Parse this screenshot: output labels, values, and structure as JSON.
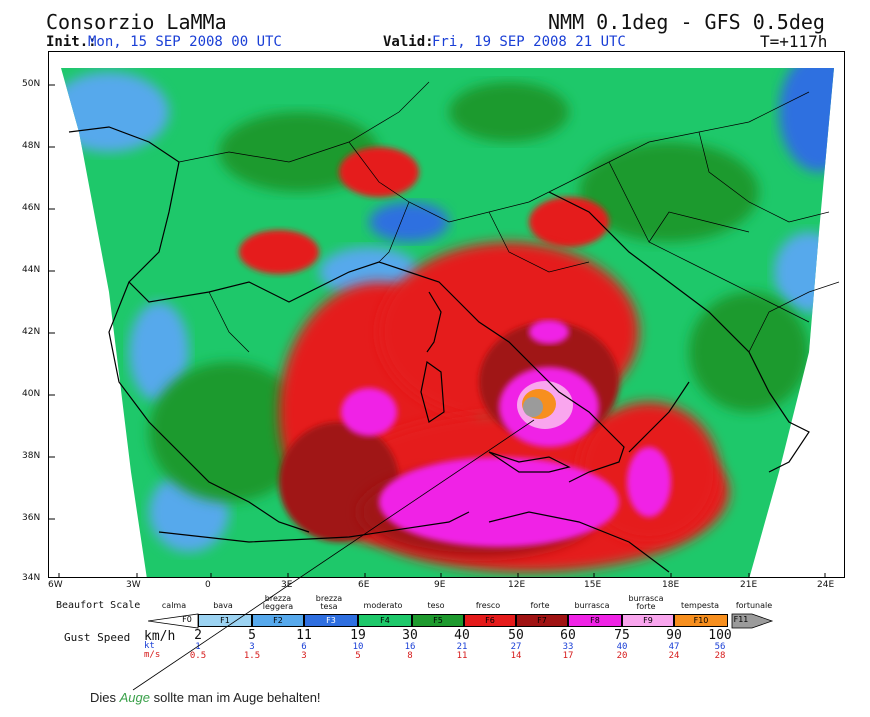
{
  "header": {
    "org": "Consorzio LaMMa",
    "model": "NMM 0.1deg - GFS 0.5deg",
    "init_label": "Init.:",
    "init_value": "Mon, 15 SEP 2008  00 UTC",
    "valid_label": "Valid:",
    "valid_value": "Fri, 19 SEP 2008  21 UTC",
    "lead": "T=+117h"
  },
  "map": {
    "lat_labels": [
      "50N",
      "48N",
      "46N",
      "44N",
      "42N",
      "40N",
      "38N",
      "36N",
      "34N"
    ],
    "lon_labels": [
      "6W",
      "3W",
      "0",
      "3E",
      "6E",
      "9E",
      "12E",
      "15E",
      "18E",
      "21E",
      "24E"
    ],
    "colors": {
      "F1": "#9cd3f2",
      "F2": "#57a9ec",
      "F3": "#2f6fe0",
      "F4": "#1fc86a",
      "F5": "#1e9a2e",
      "F6": "#e51b1b",
      "F7": "#a01313",
      "F8": "#f024e6",
      "F9": "#f9a6ee",
      "F10": "#f78f1e",
      "F11": "#9b9b9b"
    }
  },
  "legend": {
    "title": "Beaufort Scale",
    "classes": [
      {
        "name": "calma",
        "code": "F0"
      },
      {
        "name": "bava",
        "code": "F1"
      },
      {
        "name": "brezza leggera",
        "code": "F2"
      },
      {
        "name": "brezza tesa",
        "code": "F3"
      },
      {
        "name": "moderato",
        "code": "F4"
      },
      {
        "name": "teso",
        "code": "F5"
      },
      {
        "name": "fresco",
        "code": "F6"
      },
      {
        "name": "forte",
        "code": "F7"
      },
      {
        "name": "burrasca",
        "code": "F8"
      },
      {
        "name": "burrasca forte",
        "code": "F9"
      },
      {
        "name": "tempesta",
        "code": "F10"
      },
      {
        "name": "fortunale",
        "code": "F11"
      }
    ],
    "gust_label": "Gust Speed",
    "kmh_label": "km/h",
    "kt_label": "kt",
    "ms_label": "m/s",
    "kmh": [
      "2",
      "5",
      "11",
      "19",
      "30",
      "40",
      "50",
      "60",
      "75",
      "90",
      "100"
    ],
    "kt": [
      "1",
      "3",
      "6",
      "10",
      "16",
      "21",
      "27",
      "33",
      "40",
      "47",
      "56"
    ],
    "ms": [
      "0.5",
      "1.5",
      "3",
      "5",
      "8",
      "11",
      "14",
      "17",
      "20",
      "24",
      "28"
    ]
  },
  "caption": {
    "before": "Dies ",
    "eye": "Auge",
    "after": " sollte man im Auge behalten!"
  }
}
